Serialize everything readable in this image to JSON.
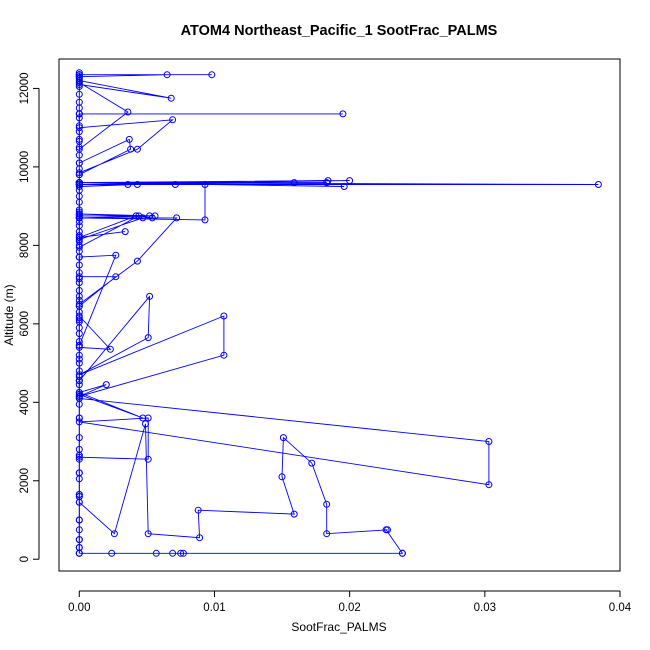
{
  "chart_data": {
    "type": "line",
    "title": "ATOM4 Northeast_Pacific_1 SootFrac_PALMS",
    "xlabel": "SootFrac_PALMS",
    "ylabel": "Altitude (m)",
    "xlim": [
      -0.0015,
      0.04
    ],
    "ylim": [
      -300,
      12750
    ],
    "xticks": [
      0.0,
      0.01,
      0.02,
      0.03,
      0.04
    ],
    "xtick_labels": [
      "0.00",
      "0.01",
      "0.02",
      "0.03",
      "0.04"
    ],
    "yticks": [
      0,
      2000,
      4000,
      6000,
      8000,
      10000,
      12000
    ],
    "ytick_labels": [
      "0",
      "2000",
      "4000",
      "6000",
      "8000",
      "10000",
      "12000"
    ],
    "grid": false,
    "legend": "none",
    "marker": "open-circle",
    "color": "#0000ff",
    "series": [
      {
        "x": [
          0.0,
          0.0,
          0.0,
          0.0,
          0.0,
          0.0,
          0.0,
          0.0,
          0.0,
          0.0,
          0.0,
          0.0,
          0.0,
          0.0,
          0.0,
          0.0,
          0.0,
          0.0,
          0.0,
          0.0,
          0.0,
          0.0,
          0.0,
          0.0,
          0.0,
          0.0,
          0.0,
          0.0,
          0.0,
          0.0,
          0.0,
          0.0,
          0.0,
          0.0,
          0.0,
          0.0,
          0.0,
          0.0,
          0.0,
          0.0,
          0.0,
          0.0,
          0.0,
          0.0,
          0.0,
          0.0,
          0.0,
          0.0,
          0.0,
          0.0,
          0.0,
          0.0,
          0.0,
          0.0,
          0.0,
          0.0,
          0.0,
          0.0,
          0.0,
          0.0,
          0.0,
          0.0,
          0.0,
          0.0,
          0.0,
          0.0,
          0.0,
          0.0,
          0.0,
          0.0,
          0.0,
          0.0,
          0.0,
          0.0,
          0.0,
          0.0
        ],
        "y": [
          150,
          300,
          500,
          750,
          1000,
          1450,
          1600,
          1650,
          2050,
          2200,
          2550,
          2650,
          2800,
          3100,
          3600,
          3950,
          4100,
          4150,
          4250,
          4450,
          4550,
          4650,
          4800,
          5000,
          5100,
          5200,
          5450,
          5550,
          5750,
          5900,
          6050,
          6150,
          6300,
          6450,
          6600,
          6700,
          6850,
          7050,
          7150,
          7300,
          7500,
          7700,
          7850,
          8000,
          8100,
          8250,
          8350,
          8500,
          8600,
          8750,
          8900,
          9100,
          9250,
          9400,
          9550,
          9600,
          9800,
          9950,
          10100,
          10300,
          10500,
          10650,
          10700,
          10900,
          11050,
          11250,
          11350,
          11500,
          11650,
          11850,
          12050,
          12150,
          12250,
          12300,
          12350,
          12400
        ]
      },
      {
        "x": [
          0.0,
          0.0024,
          0.0057,
          0.0069,
          0.0075,
          0.0077,
          0.0239,
          0.0239,
          0.0227,
          0.0228,
          0.0183,
          0.0183,
          0.0172,
          0.0151,
          0.015,
          0.0159,
          0.0088,
          0.0089,
          0.0051,
          0.0049,
          0.0026,
          0.0,
          0.0,
          0.0,
          0.0,
          0.0,
          0.0,
          0.0,
          0.0,
          0.0
        ],
        "y": [
          150,
          150,
          150,
          150,
          150,
          150,
          150,
          150,
          750,
          750,
          650,
          1400,
          2450,
          3100,
          2100,
          1150,
          1250,
          550,
          650,
          3450,
          650,
          1450,
          300,
          2200,
          1000,
          1650,
          500,
          2650,
          150,
          1600
        ]
      },
      {
        "x": [
          0.0,
          0.0303,
          0.0303,
          0.0,
          0.0051,
          0.0051,
          0.0,
          0.0,
          0.0,
          0.0,
          0.0047,
          0.0,
          0.002,
          0.0,
          0.0,
          0.0107,
          0.0107,
          0.0,
          0.0051,
          0.0052,
          0.0,
          0.0,
          0.0023,
          0.0,
          0.0,
          0.0027,
          0.0,
          0.0
        ],
        "y": [
          4100,
          3000,
          1900,
          3500,
          3600,
          2550,
          2600,
          4550,
          3600,
          4200,
          3600,
          4250,
          4450,
          4150,
          4150,
          5200,
          6200,
          4700,
          5650,
          6700,
          4550,
          5400,
          5350,
          6200,
          7700,
          7750,
          5450,
          6100
        ]
      },
      {
        "x": [
          0.0,
          0.0027,
          0.0,
          0.0,
          0.0043,
          0.0072,
          0.0,
          0.0093,
          0.0093,
          0.0,
          0.0,
          0.0,
          0.0047,
          0.0,
          0.0,
          0.0034,
          0.0,
          0.0042,
          0.0,
          0.0,
          0.0044,
          0.0054,
          0.0,
          0.0,
          0.0052,
          0.0,
          0.0,
          0.0056,
          0.0,
          0.0
        ],
        "y": [
          6450,
          7200,
          7200,
          6500,
          7600,
          8700,
          8700,
          8650,
          9550,
          9550,
          8850,
          8150,
          8700,
          8700,
          8200,
          8350,
          8200,
          8750,
          8800,
          7950,
          8750,
          8700,
          8700,
          8800,
          8750,
          8700,
          8800,
          8750,
          8750,
          8700
        ]
      },
      {
        "x": [
          0.0,
          0.0384,
          0.0,
          0.02,
          0.0,
          0.0183,
          0.0,
          0.0184,
          0.0,
          0.0196,
          0.0,
          0.0159,
          0.0,
          0.0071,
          0.0,
          0.0043,
          0.0,
          0.0036,
          0.0,
          0.0
        ],
        "y": [
          9550,
          9550,
          9600,
          9650,
          9550,
          9600,
          9600,
          9650,
          9600,
          9500,
          9600,
          9600,
          9550,
          9550,
          9550,
          9550,
          9500,
          9550,
          9550,
          9600
        ]
      },
      {
        "x": [
          0.0,
          0.0037,
          0.0038,
          0.0,
          0.0,
          0.0043,
          0.0069,
          0.0,
          0.0,
          0.0195,
          0.0,
          0.0,
          0.0036,
          0.0,
          0.0,
          0.0068,
          0.0,
          0.0,
          0.0098,
          0.0,
          0.0,
          0.0065,
          0.0,
          0.0
        ],
        "y": [
          10100,
          10700,
          10450,
          9800,
          9850,
          10450,
          11200,
          11000,
          11350,
          11350,
          11350,
          10450,
          11400,
          12150,
          12200,
          11750,
          12100,
          12350,
          12350,
          12350,
          12300,
          12350,
          12300,
          12350
        ]
      }
    ]
  }
}
